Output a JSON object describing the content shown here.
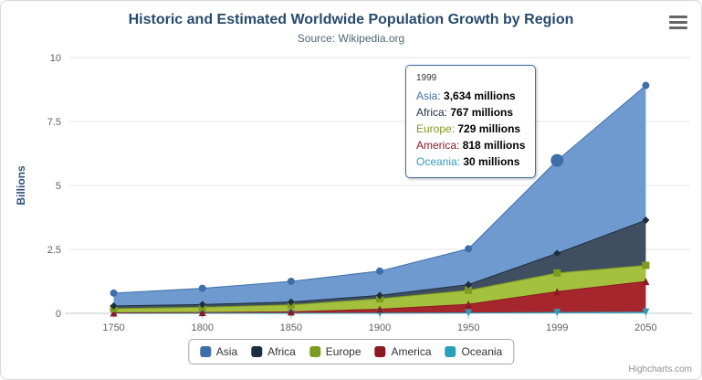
{
  "theme": {
    "title_color": "#274b6d",
    "subtitle_color": "#4d6777",
    "axis_label_color": "#606063",
    "axis_title_color": "#30527a",
    "grid_color": "#e6e6e6",
    "axis_line_color": "#c0c8d0",
    "legend_border": "#a6a6a6",
    "credits_color": "#909090"
  },
  "icons": {
    "context_menu": "hamburger-icon"
  },
  "credits": "Highcharts.com",
  "chart_data": {
    "type": "area",
    "stacking": "normal",
    "title": "Historic and Estimated Worldwide Population Growth by Region",
    "subtitle": "Source: Wikipedia.org",
    "categories": [
      "1750",
      "1800",
      "1850",
      "1900",
      "1950",
      "1999",
      "2050"
    ],
    "value_unit": "millions",
    "axis_unit": "billions",
    "scale_divisor": 1000,
    "xlabel": "",
    "ylabel": "Billions",
    "yticks": [
      0,
      2.5,
      5,
      7.5,
      10
    ],
    "ylim": [
      0,
      10
    ],
    "grid": true,
    "legend_position": "bottom",
    "series": [
      {
        "name": "Asia",
        "marker": "circle",
        "color": "#3f6fa8",
        "fill": "#6f9ad0",
        "values": [
          502,
          635,
          809,
          947,
          1402,
          3634,
          5268
        ]
      },
      {
        "name": "Africa",
        "marker": "diamond",
        "color": "#1d2e3f",
        "fill": "#3f4f61",
        "values": [
          106,
          107,
          111,
          133,
          221,
          767,
          1766
        ]
      },
      {
        "name": "Europe",
        "marker": "square",
        "color": "#7e9b21",
        "fill": "#a3c13e",
        "values": [
          163,
          203,
          276,
          408,
          547,
          729,
          628
        ]
      },
      {
        "name": "America",
        "marker": "triangle",
        "color": "#8c1a20",
        "fill": "#a5262c",
        "values": [
          18,
          31,
          54,
          156,
          339,
          818,
          1201
        ]
      },
      {
        "name": "Oceania",
        "marker": "triangle-down",
        "color": "#2a9fba",
        "fill": "#55b9ce",
        "values": [
          2,
          2,
          2,
          6,
          13,
          30,
          46
        ]
      }
    ],
    "hover": {
      "series": "Asia",
      "index": 5
    }
  },
  "tooltip": {
    "header": "1999",
    "rows": [
      {
        "name": "Asia",
        "value": "3,634 millions"
      },
      {
        "name": "Africa",
        "value": "767 millions"
      },
      {
        "name": "Europe",
        "value": "729 millions"
      },
      {
        "name": "America",
        "value": "818 millions"
      },
      {
        "name": "Oceania",
        "value": "30 millions"
      }
    ]
  }
}
